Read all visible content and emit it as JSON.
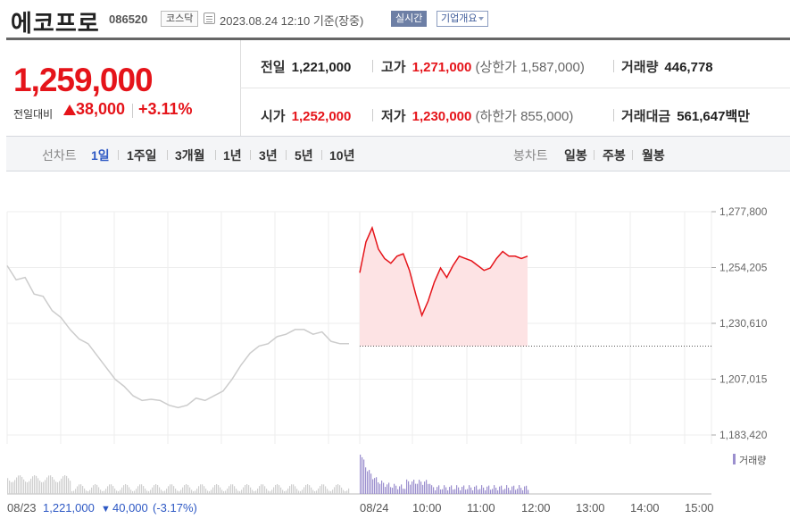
{
  "header": {
    "stock_name": "에코프로",
    "stock_code": "086520",
    "market": "코스닥",
    "timestamp": "2023.08.24 12:10 기준(장중)",
    "realtime_label": "실시간",
    "overview_label": "기업개요"
  },
  "price": {
    "current": "1,259,000",
    "change_label": "전일대비",
    "change_amount": "38,000",
    "change_percent": "+3.11%",
    "direction": "up"
  },
  "stats": {
    "prev_close": {
      "label": "전일",
      "value": "1,221,000"
    },
    "high": {
      "label": "고가",
      "value": "1,271,000",
      "limit_label": "상한가",
      "limit_value": "1,587,000"
    },
    "volume": {
      "label": "거래량",
      "value": "446,778"
    },
    "open": {
      "label": "시가",
      "value": "1,252,000"
    },
    "low": {
      "label": "저가",
      "value": "1,230,000",
      "limit_label": "하한가",
      "limit_value": "855,000"
    },
    "amount": {
      "label": "거래대금",
      "value": "561,647",
      "unit": "백만"
    }
  },
  "periods": {
    "line_label": "선차트",
    "line_options": [
      "1일",
      "1주일",
      "3개월",
      "1년",
      "3년",
      "5년",
      "10년"
    ],
    "active": "1일",
    "candle_label": "봉차트",
    "candle_options": [
      "일봉",
      "주봉",
      "월봉"
    ]
  },
  "colors": {
    "up": "#e5141a",
    "down": "#2d58c4",
    "prev_day_line": "#cccccc",
    "today_fill": "#fde3e4",
    "volume_today": "#9b8fce",
    "volume_prev": "#cfcfcf"
  },
  "chart_data": {
    "type": "line",
    "y_ticks": [
      "1,277,800",
      "1,254,205",
      "1,230,610",
      "1,207,015",
      "1,183,420"
    ],
    "y_tick_values": [
      1277800,
      1254205,
      1230610,
      1207015,
      1183420
    ],
    "ylim": [
      1183420,
      1277800
    ],
    "x_ticks": [
      "08/23",
      "08/24",
      "10:00",
      "11:00",
      "12:00",
      "13:00",
      "14:00",
      "15:00"
    ],
    "base_price": 1221000,
    "prev_day_info": {
      "date": "08/23",
      "close": "1,221,000",
      "change": "40,000",
      "change_pct": "(-3.17%)"
    },
    "volume_legend": "거래량",
    "series": [
      {
        "values": [
          1255000,
          1249000,
          1250000,
          1243000,
          1242000,
          1236000,
          1233000,
          1228000,
          1224000,
          1222000,
          1217000,
          1212000,
          1207000,
          1204000,
          1200000,
          1198000,
          1198500,
          1198000,
          1196000,
          1195000,
          1196000,
          1199000,
          1198000,
          1200000,
          1202000,
          1207000,
          1213000,
          1218000,
          1221000,
          1222000,
          1225000,
          1226000,
          1228000,
          1228000,
          1226000,
          1227000,
          1223000,
          1222000,
          1222000
        ]
      },
      {
        "values": [
          1252000,
          1265000,
          1271000,
          1262000,
          1258000,
          1256000,
          1259000,
          1260000,
          1253000,
          1243000,
          1234000,
          1240000,
          1248000,
          1254000,
          1250000,
          1255000,
          1259000,
          1258000,
          1257000,
          1255000,
          1253000,
          1254000,
          1258000,
          1261000,
          1259000,
          1259000,
          1258000,
          1259000
        ]
      }
    ]
  }
}
